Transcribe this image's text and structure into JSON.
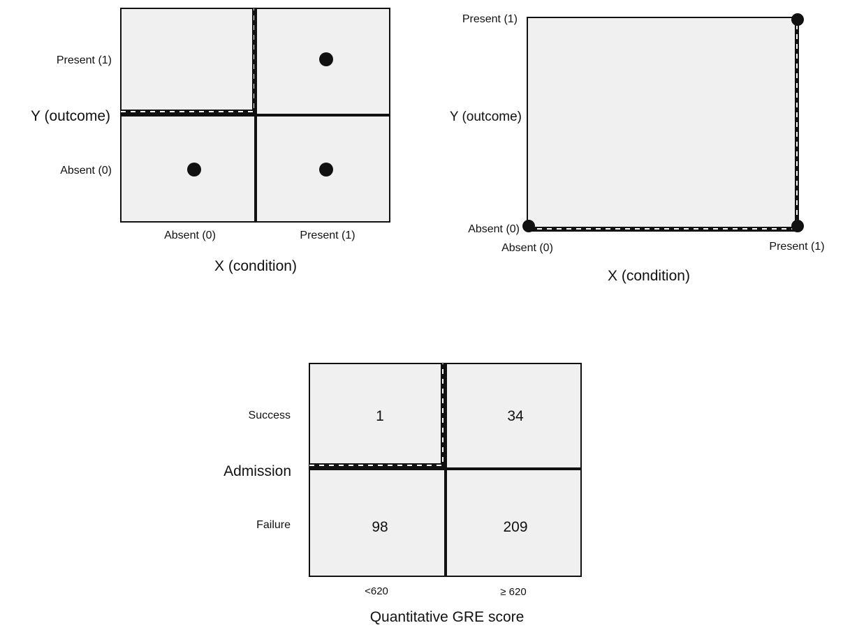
{
  "panel_a": {
    "y_title": "Y (outcome)",
    "x_title": "X (condition)",
    "y_ticks": [
      "Present (1)",
      "Absent (0)"
    ],
    "x_ticks": [
      "Absent (0)",
      "Present (1)"
    ],
    "points": [
      {
        "x": 1,
        "y": 1
      },
      {
        "x": 0,
        "y": 0
      },
      {
        "x": 1,
        "y": 0
      }
    ]
  },
  "panel_b": {
    "y_title": "Y (outcome)",
    "x_title": "X (condition)",
    "y_top": "Present (1)",
    "y_bottom": "Absent (0)",
    "x_left": "Absent (0)",
    "x_right": "Present (1)",
    "points": [
      {
        "x": 0,
        "y": 0
      },
      {
        "x": 1,
        "y": 0
      },
      {
        "x": 1,
        "y": 1
      }
    ]
  },
  "panel_c": {
    "y_title": "Admission",
    "x_title": "Quantitative GRE score",
    "y_ticks": [
      "Success",
      "Failure"
    ],
    "x_ticks": [
      "<620",
      "≥ 620"
    ],
    "cells": [
      {
        "row": 0,
        "col": 0,
        "value": "1"
      },
      {
        "row": 0,
        "col": 1,
        "value": "34"
      },
      {
        "row": 1,
        "col": 0,
        "value": "98"
      },
      {
        "row": 1,
        "col": 1,
        "value": "209"
      }
    ]
  },
  "colors": {
    "cell_fill": "#f0f0f0",
    "line": "#111111",
    "dash_light": "#ffffff"
  }
}
